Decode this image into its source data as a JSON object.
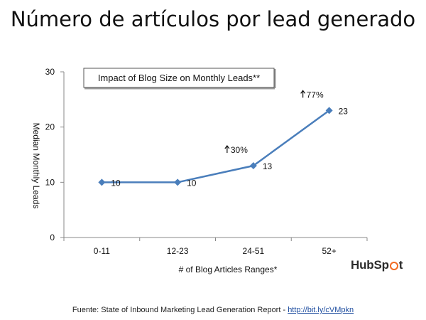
{
  "slide_title": "Número de artículos por lead generado",
  "footer": {
    "text": "Fuente: State of Inbound Marketing Lead Generation Report - ",
    "link_text": "http://bit.ly/cVMpkn"
  },
  "logo": {
    "text_before": "HubSp",
    "text_after": "t"
  },
  "chart_data": {
    "type": "line",
    "title": "Impact of Blog Size on Monthly Leads**",
    "xlabel": "# of Blog Articles Ranges*",
    "ylabel": "Median Monthly Leads",
    "categories": [
      "0-11",
      "12-23",
      "24-51",
      "52+"
    ],
    "values": [
      10,
      10,
      13,
      23
    ],
    "data_labels": [
      "10",
      "10",
      "13",
      "23"
    ],
    "annotations": [
      {
        "category": "24-51",
        "text": "30%"
      },
      {
        "category": "52+",
        "text": "77%"
      }
    ],
    "ylim": [
      0,
      30
    ],
    "yticks": [
      0,
      10,
      20,
      30
    ],
    "grid": false,
    "legend": "none",
    "line_color": "#4a7ebb"
  }
}
